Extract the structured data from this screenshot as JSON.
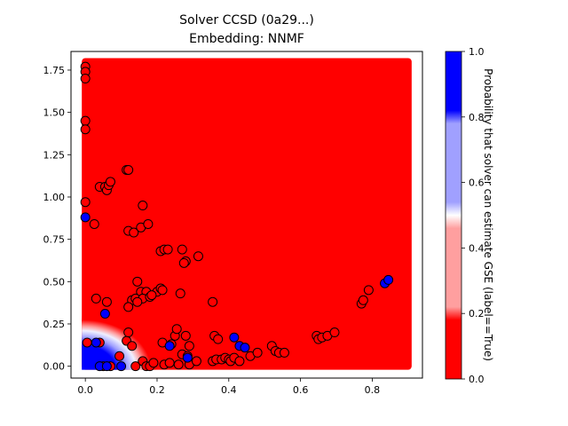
{
  "chart_data": {
    "type": "scatter",
    "title_line1": "Solver CCSD (0a29...)",
    "title_line2": "Embedding: NNMF",
    "xlim": [
      -0.04,
      0.94
    ],
    "ylim": [
      -0.07,
      1.86
    ],
    "x_ticks": [
      "0.0",
      "0.2",
      "0.4",
      "0.6",
      "0.8"
    ],
    "x_tick_values": [
      0.0,
      0.2,
      0.4,
      0.6,
      0.8
    ],
    "y_ticks": [
      "0.00",
      "0.25",
      "0.50",
      "0.75",
      "1.00",
      "1.25",
      "1.50",
      "1.75"
    ],
    "y_tick_values": [
      0.0,
      0.25,
      0.5,
      0.75,
      1.0,
      1.25,
      1.5,
      1.75
    ],
    "background_region": {
      "x": [
        0.0,
        0.9
      ],
      "y": [
        0.0,
        1.8
      ]
    },
    "colorbar": {
      "label": "Probability that solver can estimate GSE (label==True)",
      "ticks": [
        "0.0",
        "0.2",
        "0.4",
        "0.6",
        "0.8",
        "1.0"
      ],
      "tick_values": [
        0.0,
        0.2,
        0.4,
        0.6,
        0.8,
        1.0
      ]
    },
    "colors": {
      "true": "#0000ff",
      "false": "#ff0000",
      "light_true": "#a0a0ff",
      "light_false": "#ff9f9f"
    },
    "points_label_false": [
      [
        0.0,
        1.77
      ],
      [
        0.0,
        1.74
      ],
      [
        0.0,
        1.7
      ],
      [
        0.0,
        1.45
      ],
      [
        0.0,
        1.4
      ],
      [
        0.0,
        0.97
      ],
      [
        0.025,
        0.84
      ],
      [
        0.04,
        1.06
      ],
      [
        0.055,
        1.06
      ],
      [
        0.06,
        1.04
      ],
      [
        0.065,
        1.07
      ],
      [
        0.07,
        1.09
      ],
      [
        0.115,
        1.16
      ],
      [
        0.12,
        1.16
      ],
      [
        0.16,
        0.95
      ],
      [
        0.12,
        0.8
      ],
      [
        0.135,
        0.79
      ],
      [
        0.155,
        0.82
      ],
      [
        0.175,
        0.84
      ],
      [
        0.21,
        0.68
      ],
      [
        0.22,
        0.69
      ],
      [
        0.23,
        0.69
      ],
      [
        0.27,
        0.69
      ],
      [
        0.28,
        0.62
      ],
      [
        0.275,
        0.61
      ],
      [
        0.315,
        0.65
      ],
      [
        0.03,
        0.4
      ],
      [
        0.06,
        0.38
      ],
      [
        0.145,
        0.5
      ],
      [
        0.155,
        0.44
      ],
      [
        0.17,
        0.44
      ],
      [
        0.2,
        0.44
      ],
      [
        0.21,
        0.46
      ],
      [
        0.215,
        0.45
      ],
      [
        0.13,
        0.39
      ],
      [
        0.14,
        0.4
      ],
      [
        0.16,
        0.4
      ],
      [
        0.18,
        0.41
      ],
      [
        0.185,
        0.42
      ],
      [
        0.12,
        0.35
      ],
      [
        0.145,
        0.38
      ],
      [
        0.265,
        0.43
      ],
      [
        0.355,
        0.38
      ],
      [
        0.005,
        0.14
      ],
      [
        0.04,
        0.14
      ],
      [
        0.05,
        0.0
      ],
      [
        0.07,
        0.0
      ],
      [
        0.095,
        0.06
      ],
      [
        0.115,
        0.15
      ],
      [
        0.12,
        0.2
      ],
      [
        0.13,
        0.12
      ],
      [
        0.14,
        0.0
      ],
      [
        0.16,
        0.03
      ],
      [
        0.17,
        0.0
      ],
      [
        0.18,
        0.0
      ],
      [
        0.19,
        0.02
      ],
      [
        0.215,
        0.14
      ],
      [
        0.22,
        0.01
      ],
      [
        0.235,
        0.02
      ],
      [
        0.24,
        0.13
      ],
      [
        0.25,
        0.18
      ],
      [
        0.255,
        0.22
      ],
      [
        0.26,
        0.01
      ],
      [
        0.27,
        0.07
      ],
      [
        0.28,
        0.18
      ],
      [
        0.285,
        0.06
      ],
      [
        0.29,
        0.12
      ],
      [
        0.29,
        0.01
      ],
      [
        0.31,
        0.03
      ],
      [
        0.355,
        0.03
      ],
      [
        0.36,
        0.18
      ],
      [
        0.365,
        0.04
      ],
      [
        0.37,
        0.16
      ],
      [
        0.38,
        0.04
      ],
      [
        0.39,
        0.05
      ],
      [
        0.4,
        0.04
      ],
      [
        0.405,
        0.03
      ],
      [
        0.415,
        0.05
      ],
      [
        0.43,
        0.03
      ],
      [
        0.46,
        0.06
      ],
      [
        0.48,
        0.08
      ],
      [
        0.52,
        0.12
      ],
      [
        0.53,
        0.09
      ],
      [
        0.54,
        0.08
      ],
      [
        0.555,
        0.08
      ],
      [
        0.645,
        0.18
      ],
      [
        0.65,
        0.16
      ],
      [
        0.66,
        0.17
      ],
      [
        0.675,
        0.18
      ],
      [
        0.695,
        0.2
      ],
      [
        0.77,
        0.37
      ],
      [
        0.775,
        0.39
      ],
      [
        0.79,
        0.45
      ]
    ],
    "points_label_true": [
      [
        0.0,
        0.88
      ],
      [
        0.055,
        0.31
      ],
      [
        0.03,
        0.14
      ],
      [
        0.04,
        0.0
      ],
      [
        0.06,
        0.0
      ],
      [
        0.1,
        0.0
      ],
      [
        0.235,
        0.12
      ],
      [
        0.285,
        0.05
      ],
      [
        0.415,
        0.17
      ],
      [
        0.43,
        0.12
      ],
      [
        0.445,
        0.11
      ],
      [
        0.835,
        0.49
      ],
      [
        0.845,
        0.51
      ]
    ]
  }
}
